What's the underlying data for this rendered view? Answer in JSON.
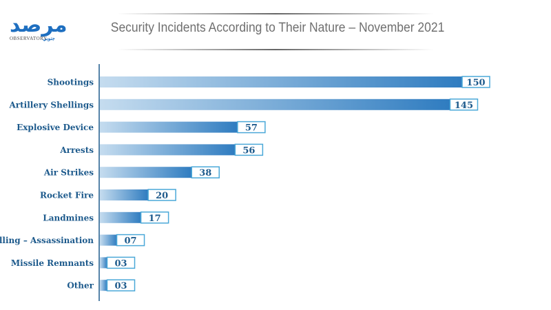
{
  "logo": {
    "main": "مرصد",
    "sub": "OBSERVATORY",
    "ar": "جنوبي"
  },
  "chart_data": {
    "type": "bar",
    "orientation": "horizontal",
    "title": "Security Incidents According to Their Nature – November 2021",
    "categories": [
      "Shootings",
      "Artillery Shellings",
      "Explosive Device",
      "Arrests",
      "Air Strikes",
      "Rocket Fire",
      "Landmines",
      "Killing – Assassination",
      "Missile Remnants",
      "Other"
    ],
    "values": [
      150,
      145,
      57,
      56,
      38,
      20,
      17,
      7,
      3,
      3
    ],
    "value_labels": [
      "150",
      "145",
      "57",
      "56",
      "38",
      "20",
      "17",
      "07",
      "03",
      "03"
    ],
    "xlabel": "",
    "ylabel": "",
    "xlim": [
      0,
      150
    ],
    "grid": false,
    "legend": "none",
    "colors": {
      "bar_start": "#c5dcef",
      "bar_end": "#2f7cc0",
      "label_border": "#4aa8d8",
      "text": "#1d5a8c",
      "axis": "#1d5a8c",
      "title": "#6f6f6f"
    }
  }
}
